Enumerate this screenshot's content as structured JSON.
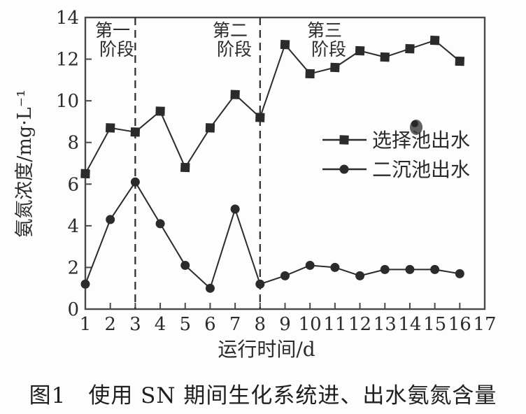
{
  "caption": "图1　使用 SN 期间生化系统进、出水氨氮含量",
  "chart_data": {
    "type": "line",
    "title": "",
    "xlabel": "运行时间/d",
    "ylabel": "氨氮浓度/mg·L⁻¹",
    "xlim": [
      1,
      17
    ],
    "ylim": [
      0,
      14
    ],
    "xticks": [
      1,
      2,
      3,
      4,
      5,
      6,
      7,
      8,
      9,
      10,
      11,
      12,
      13,
      14,
      15,
      16,
      17
    ],
    "yticks": [
      0,
      2,
      4,
      6,
      8,
      10,
      12,
      14
    ],
    "grid": false,
    "legend_position": "center-right",
    "x": [
      1,
      2,
      3,
      4,
      5,
      6,
      7,
      8,
      9,
      10,
      11,
      12,
      13,
      14,
      15,
      16
    ],
    "series": [
      {
        "name": "选择池出水",
        "marker": "square",
        "values": [
          6.5,
          8.7,
          8.5,
          9.5,
          6.8,
          8.7,
          10.3,
          9.2,
          12.7,
          11.3,
          11.6,
          12.4,
          12.1,
          12.5,
          12.9,
          11.9
        ]
      },
      {
        "name": "二沉池出水",
        "marker": "circle",
        "values": [
          1.2,
          4.3,
          6.1,
          4.1,
          2.1,
          1.0,
          4.8,
          1.2,
          1.6,
          2.1,
          2.0,
          1.6,
          1.9,
          1.9,
          1.9,
          1.7
        ]
      }
    ],
    "phase_dividers_x": [
      3,
      8
    ],
    "phase_labels": [
      "第一阶段",
      "第二阶段",
      "第三阶段"
    ],
    "ink_color": "#2b2b2b",
    "frame_color": "#4a4a4a"
  }
}
